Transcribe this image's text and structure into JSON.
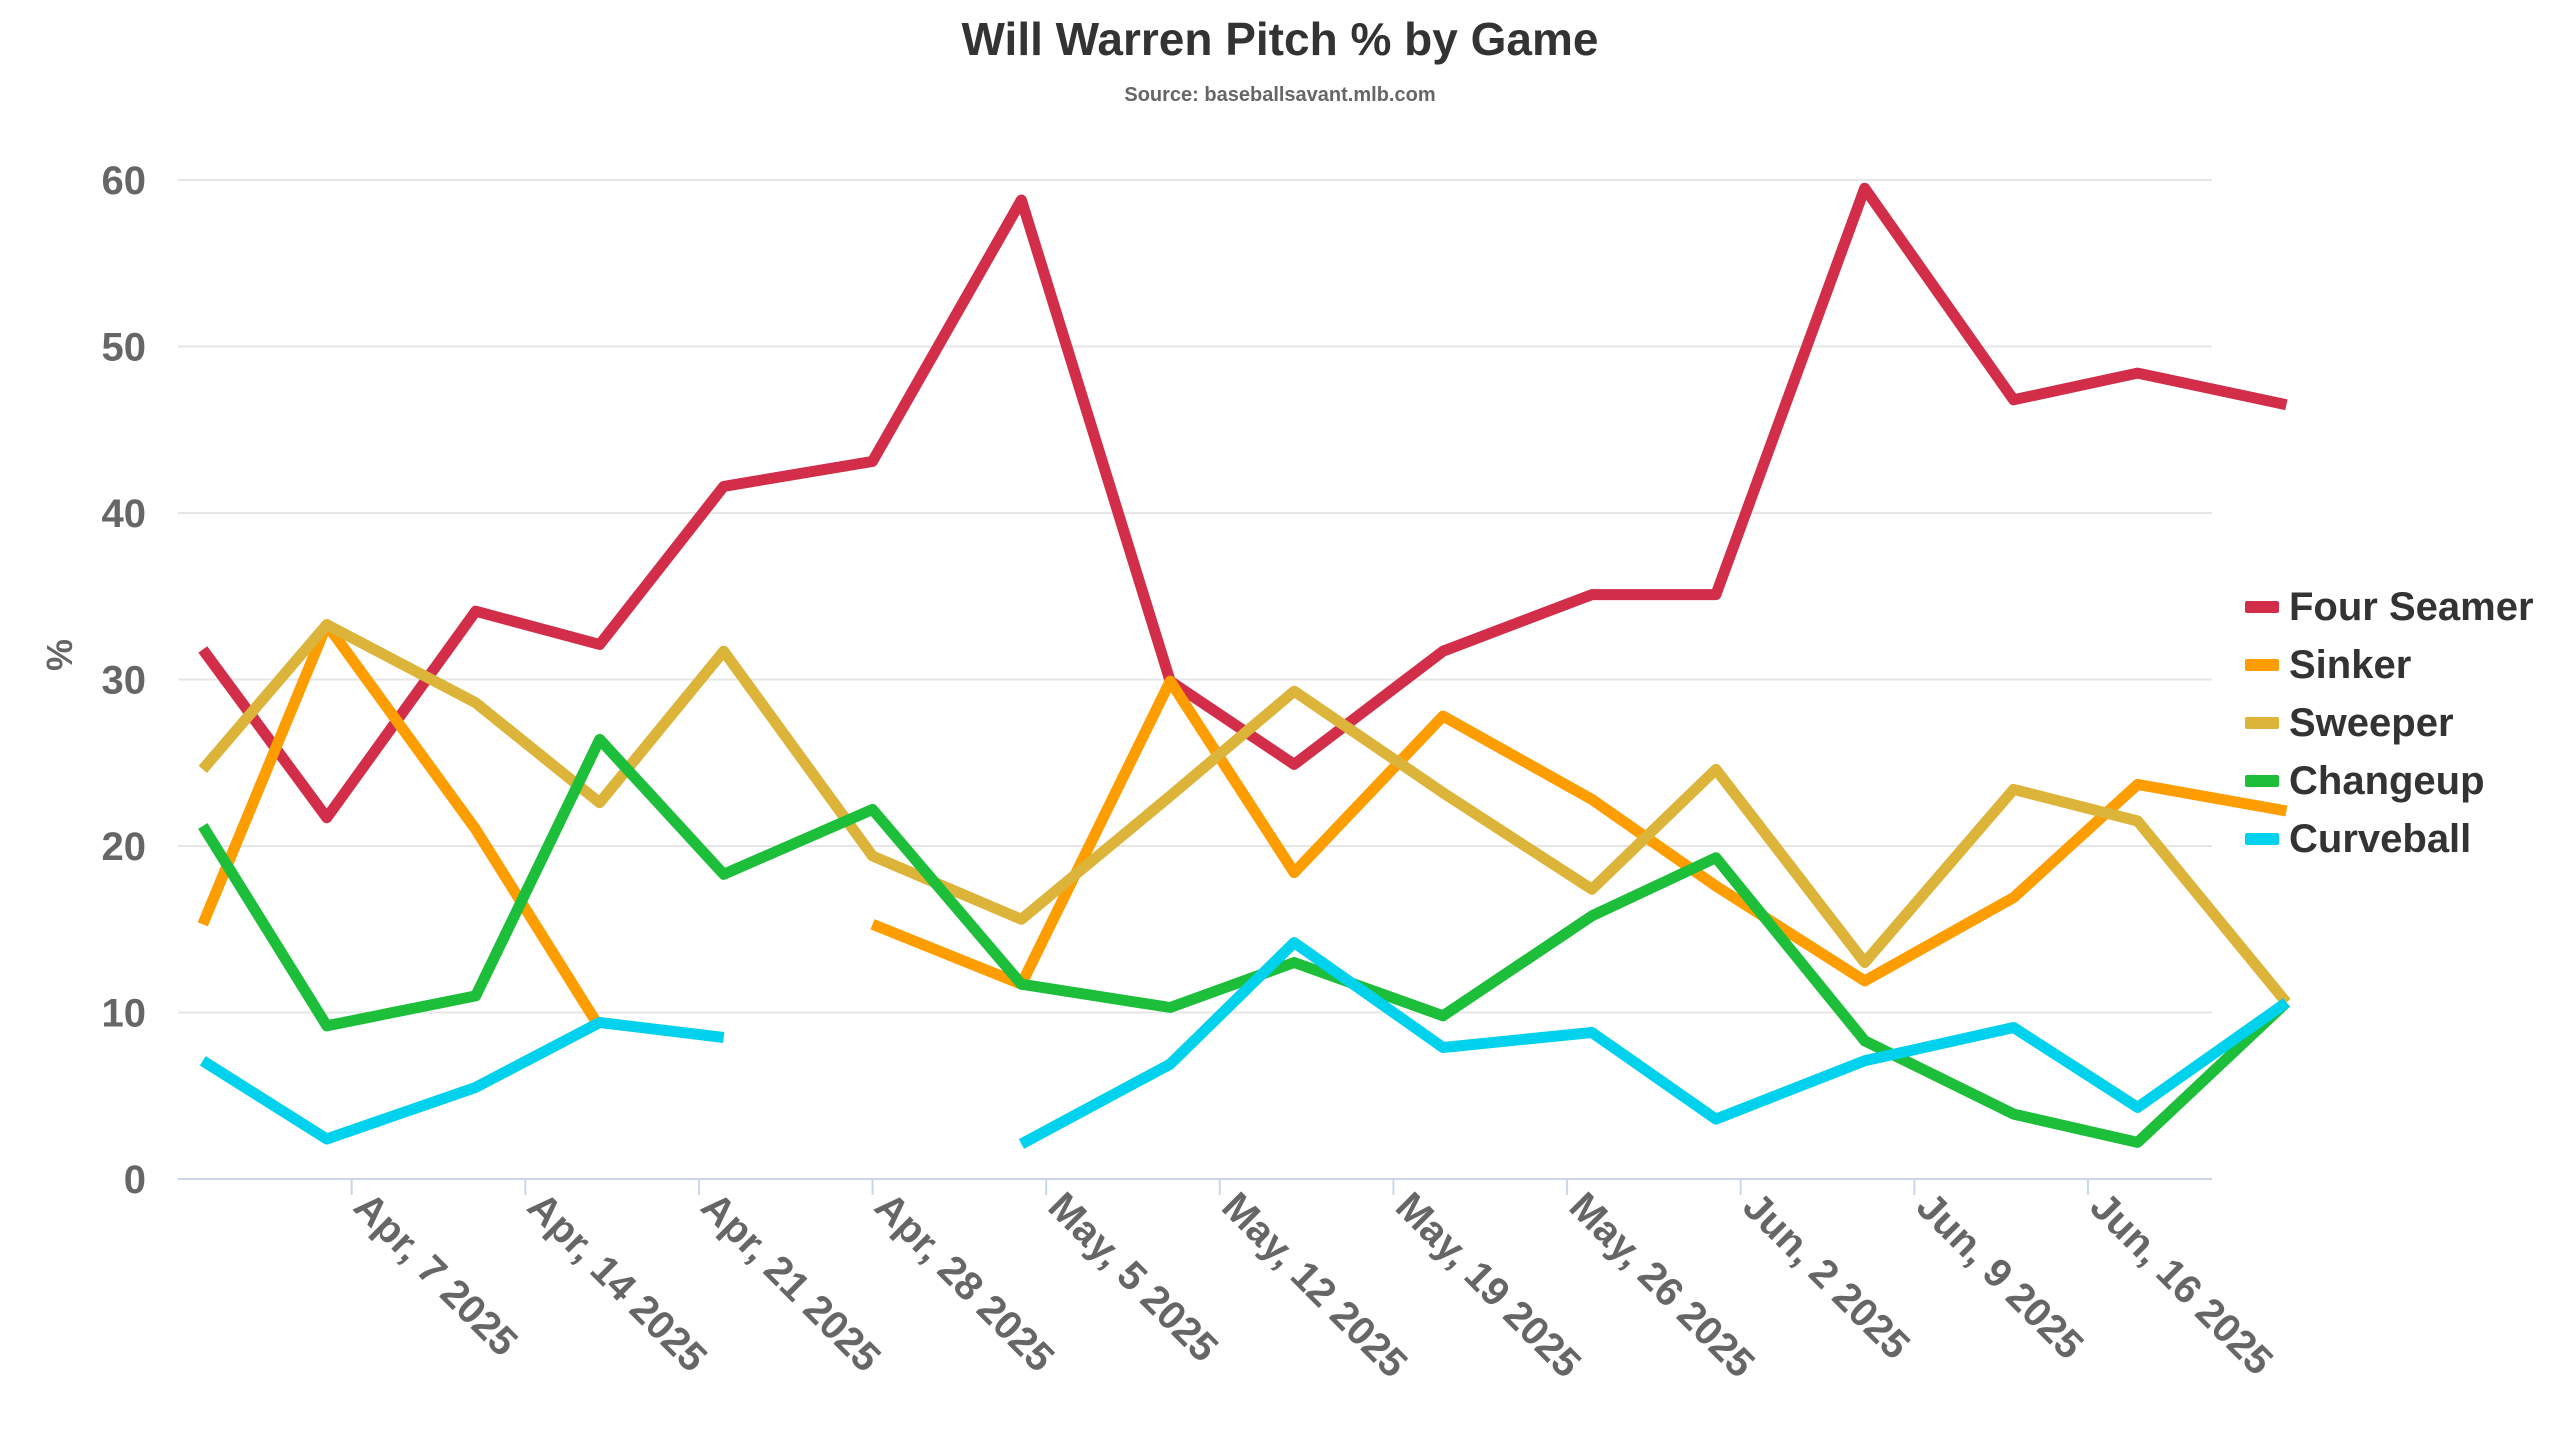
{
  "chart_data": {
    "type": "line",
    "title": "Will Warren Pitch % by Game",
    "subtitle": "Source: baseballsavant.mlb.com",
    "ylabel": "%",
    "xlabel": "",
    "ylim": [
      0,
      60
    ],
    "yticks": [
      0,
      10,
      20,
      30,
      40,
      50,
      60
    ],
    "x_axis_type": "datetime",
    "xlim": [
      "2025-03-31",
      "2025-06-21"
    ],
    "xticks": [
      {
        "date": "2025-04-07",
        "label": "Apr, 7 2025"
      },
      {
        "date": "2025-04-14",
        "label": "Apr, 14 2025"
      },
      {
        "date": "2025-04-21",
        "label": "Apr, 21 2025"
      },
      {
        "date": "2025-04-28",
        "label": "Apr, 28 2025"
      },
      {
        "date": "2025-05-05",
        "label": "May, 5 2025"
      },
      {
        "date": "2025-05-12",
        "label": "May, 12 2025"
      },
      {
        "date": "2025-05-19",
        "label": "May, 19 2025"
      },
      {
        "date": "2025-05-26",
        "label": "May, 26 2025"
      },
      {
        "date": "2025-06-02",
        "label": "Jun, 2 2025"
      },
      {
        "date": "2025-06-09",
        "label": "Jun, 9 2025"
      },
      {
        "date": "2025-06-16",
        "label": "Jun, 16 2025"
      }
    ],
    "x": [
      "2025-04-01",
      "2025-04-06",
      "2025-04-12",
      "2025-04-17",
      "2025-04-22",
      "2025-04-28",
      "2025-05-04",
      "2025-05-10",
      "2025-05-15",
      "2025-05-21",
      "2025-05-27",
      "2025-06-01",
      "2025-06-07",
      "2025-06-13",
      "2025-06-18",
      "2025-06-24"
    ],
    "grid": true,
    "legend_position": "right",
    "series": [
      {
        "name": "Four Seamer",
        "color": "#d22d49",
        "values": [
          31.8,
          21.7,
          34.1,
          32.1,
          41.6,
          43.1,
          58.8,
          29.9,
          24.9,
          31.7,
          35.1,
          35.1,
          59.5,
          46.8,
          48.4,
          46.5
        ]
      },
      {
        "name": "Sinker",
        "color": "#fe9d00",
        "values": [
          15.3,
          33.3,
          21.0,
          9.1,
          null,
          15.3,
          11.7,
          29.9,
          18.4,
          27.8,
          22.8,
          17.6,
          11.9,
          16.9,
          23.7,
          22.1
        ]
      },
      {
        "name": "Sweeper",
        "color": "#dbb439",
        "values": [
          24.6,
          33.3,
          28.6,
          22.6,
          31.7,
          19.4,
          15.6,
          23.0,
          29.3,
          23.2,
          17.4,
          24.6,
          13.0,
          23.4,
          21.5,
          10.6
        ]
      },
      {
        "name": "Changeup",
        "color": "#1dbe3a",
        "values": [
          21.2,
          9.2,
          11.0,
          26.4,
          18.3,
          22.2,
          11.7,
          10.3,
          13.0,
          9.8,
          15.8,
          19.3,
          8.3,
          3.9,
          2.2,
          10.6
        ]
      },
      {
        "name": "Curveball",
        "color": "#00d1ed",
        "values": [
          7.1,
          2.4,
          5.5,
          9.4,
          8.5,
          null,
          2.1,
          6.9,
          14.2,
          7.9,
          8.8,
          3.6,
          7.1,
          9.1,
          4.3,
          10.6
        ]
      }
    ]
  }
}
